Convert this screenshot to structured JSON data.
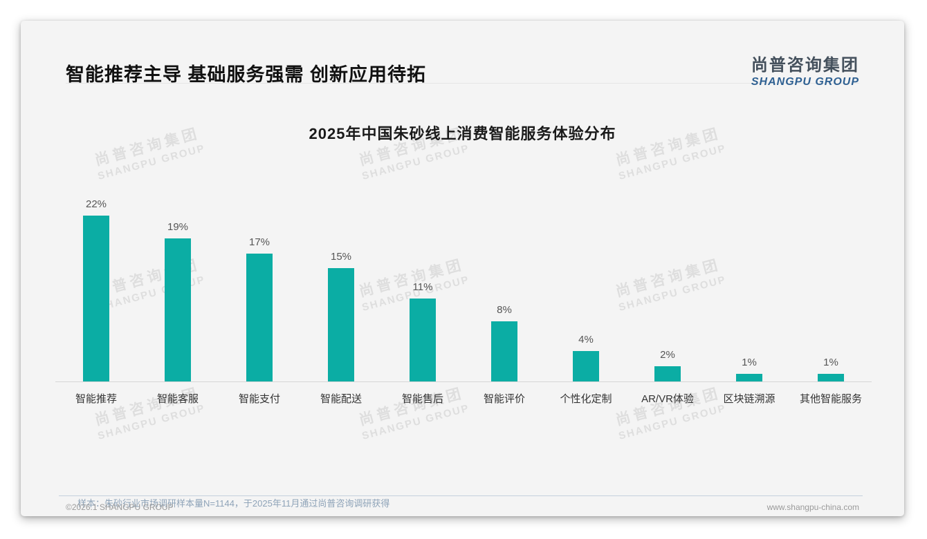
{
  "header": {
    "title": "智能推荐主导 基础服务强需 创新应用待拓"
  },
  "brand": {
    "cn": "尚普咨询集团",
    "en": "SHANGPU GROUP"
  },
  "watermark": {
    "cn": "尚普咨询集团",
    "en": "SHANGPU GROUP"
  },
  "chart_data": {
    "type": "bar",
    "title": "2025年中国朱砂线上消费智能服务体验分布",
    "categories": [
      "智能推荐",
      "智能客服",
      "智能支付",
      "智能配送",
      "智能售后",
      "智能评价",
      "个性化定制",
      "AR/VR体验",
      "区块链溯源",
      "其他智能服务"
    ],
    "values": [
      22,
      19,
      17,
      15,
      11,
      8,
      4,
      2,
      1,
      1
    ],
    "unit": "%",
    "bar_color": "#0badA4",
    "ylim": [
      0,
      24
    ],
    "grid": false,
    "legend": false,
    "data_labels": true
  },
  "note": "样本：朱砂行业市场调研样本量N=1144，于2025年11月通过尚普咨询调研获得",
  "footer": {
    "left": "©2026.1 SHANGPU GROUP",
    "right": "www.shangpu-china.com"
  }
}
